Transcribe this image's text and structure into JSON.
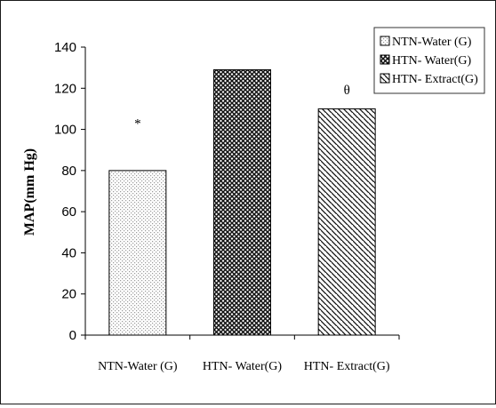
{
  "chart_data": {
    "type": "bar",
    "title": "",
    "xlabel": "",
    "ylabel": "MAP(mm Hg)",
    "categories": [
      "NTN-Water (G)",
      "HTN- Water(G)",
      "HTN- Extract(G)"
    ],
    "values": [
      80,
      129,
      110
    ],
    "ylim": [
      0,
      140
    ],
    "yticks": [
      0,
      20,
      40,
      60,
      80,
      100,
      120,
      140
    ],
    "grid": false,
    "legend": {
      "placement": "top-right",
      "entries": [
        "NTN-Water (G)",
        "HTN- Water(G)",
        "HTN- Extract(G)"
      ]
    },
    "annotations": [
      "*",
      "",
      "θ"
    ],
    "bar_fills": [
      "dots",
      "crosshatch",
      "diagonal"
    ]
  }
}
